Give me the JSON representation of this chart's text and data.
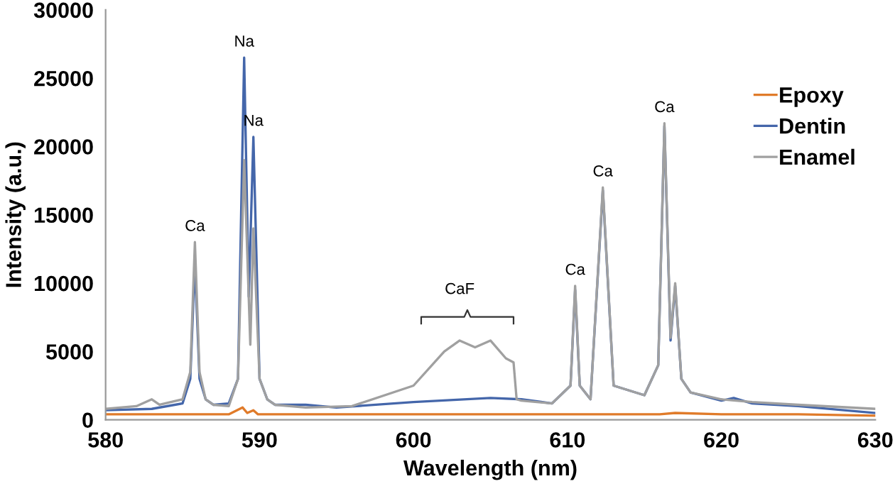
{
  "chart_data": {
    "type": "line",
    "xlabel": "Wavelength (nm)",
    "ylabel": "Intensity (a.u.)",
    "xlim": [
      580,
      630
    ],
    "xticks": [
      580,
      590,
      600,
      610,
      620,
      630
    ],
    "ylim": [
      0,
      30000
    ],
    "yticks": [
      0,
      5000,
      10000,
      15000,
      20000,
      25000,
      30000
    ],
    "grid": false,
    "legend": "top right",
    "marker": "none",
    "line_style": "solid",
    "series": [
      {
        "name": "Epoxy",
        "color": "#e07b2a",
        "x": [
          580,
          585,
          588,
          588.9,
          589.2,
          589.6,
          589.9,
          590.5,
          595,
          600,
          605,
          610,
          612,
          616,
          617,
          620,
          625,
          630
        ],
        "values": [
          400,
          400,
          400,
          900,
          500,
          700,
          400,
          400,
          400,
          400,
          400,
          400,
          400,
          400,
          500,
          400,
          400,
          300
        ]
      },
      {
        "name": "Dentin",
        "color": "#4466aa",
        "x": [
          580,
          583,
          585,
          585.5,
          585.8,
          586.1,
          586.5,
          587,
          588,
          588.6,
          589.0,
          589.3,
          589.6,
          590,
          590.5,
          591,
          593,
          595,
          600,
          605,
          607,
          609,
          610.2,
          610.5,
          610.8,
          611.5,
          612.3,
          613,
          615,
          615.9,
          616.3,
          616.7,
          617,
          617.4,
          618,
          620,
          620.8,
          622,
          625,
          630
        ],
        "values": [
          700,
          800,
          1200,
          3000,
          11500,
          3000,
          1500,
          1100,
          1200,
          3000,
          26500,
          9000,
          20700,
          3000,
          1500,
          1100,
          1100,
          900,
          1300,
          1600,
          1500,
          1200,
          2500,
          9500,
          2500,
          1500,
          16800,
          2500,
          1800,
          4000,
          21500,
          5800,
          9800,
          3000,
          2000,
          1400,
          1600,
          1200,
          1000,
          500
        ]
      },
      {
        "name": "Enamel",
        "color": "#a0a0a0",
        "x": [
          580,
          582,
          583,
          583.5,
          585,
          585.5,
          585.8,
          586.1,
          586.5,
          587,
          588,
          588.6,
          589.0,
          589.4,
          589.6,
          590,
          590.5,
          591,
          593,
          596,
          600,
          602,
          603,
          604,
          605,
          606,
          606.5,
          606.7,
          607,
          609,
          610.2,
          610.5,
          610.8,
          611.5,
          612.3,
          613,
          615,
          615.9,
          616.3,
          616.7,
          617,
          617.4,
          618,
          620,
          622,
          625,
          630
        ],
        "values": [
          800,
          1000,
          1500,
          1100,
          1500,
          3500,
          13000,
          3500,
          1500,
          1100,
          1000,
          3000,
          19000,
          5500,
          14000,
          3000,
          1500,
          1100,
          900,
          1000,
          2500,
          5000,
          5800,
          5300,
          5800,
          4500,
          4200,
          1500,
          1400,
          1200,
          2500,
          9800,
          2500,
          1500,
          17000,
          2500,
          1800,
          4000,
          21700,
          6000,
          10000,
          3000,
          2000,
          1500,
          1300,
          1100,
          800
        ]
      }
    ],
    "annotations": [
      {
        "text": "Ca",
        "x": 585.8,
        "y": 13000
      },
      {
        "text": "Na",
        "x": 589.0,
        "y": 26500
      },
      {
        "text": "Na",
        "x": 589.6,
        "y": 20700
      },
      {
        "text": "CaF",
        "x": 603,
        "y": 5800
      },
      {
        "text": "Ca",
        "x": 610.5,
        "y": 9800
      },
      {
        "text": "Ca",
        "x": 612.3,
        "y": 17000
      },
      {
        "text": "Ca",
        "x": 616.3,
        "y": 21700
      }
    ]
  }
}
